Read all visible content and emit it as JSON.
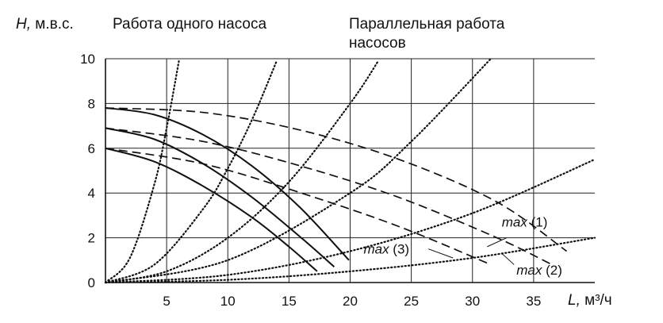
{
  "chart_data": {
    "type": "line",
    "title_single": "Работа одного насоса",
    "title_parallel_line1": "Параллельная работа",
    "title_parallel_line2": "насосов",
    "ylabel_var": "H,",
    "ylabel_unit": "м.в.с.",
    "xlabel_var": "L,",
    "xlabel_unit": "м³/ч",
    "xlim": [
      0,
      40
    ],
    "ylim": [
      0,
      10
    ],
    "x_ticks": [
      "5",
      "10",
      "15",
      "20",
      "25",
      "30",
      "35"
    ],
    "x_tick_values": [
      5,
      10,
      15,
      20,
      25,
      30,
      35
    ],
    "y_ticks": [
      "0",
      "2",
      "4",
      "6",
      "8",
      "10"
    ],
    "y_tick_values": [
      0,
      2,
      4,
      6,
      8,
      10
    ],
    "grid": true,
    "single_pump_curves": [
      {
        "x": [
          0,
          4,
          8,
          12,
          15,
          17.3
        ],
        "y": [
          6.0,
          5.4,
          4.3,
          2.9,
          1.6,
          0.5
        ]
      },
      {
        "x": [
          0,
          4,
          8,
          12,
          16,
          18.7
        ],
        "y": [
          6.9,
          6.4,
          5.3,
          3.8,
          2.0,
          0.7
        ]
      },
      {
        "x": [
          0,
          4,
          8,
          12,
          16,
          19.9
        ],
        "y": [
          7.8,
          7.5,
          6.6,
          5.2,
          3.3,
          1.0
        ]
      }
    ],
    "parallel_pump_curves": [
      {
        "x": [
          0,
          8,
          16,
          24,
          31.5
        ],
        "y": [
          6.0,
          5.3,
          4.0,
          2.5,
          0.8
        ]
      },
      {
        "x": [
          0,
          8,
          16,
          24,
          32,
          36.5
        ],
        "y": [
          6.9,
          6.3,
          5.2,
          3.8,
          2.0,
          0.8
        ]
      },
      {
        "x": [
          0,
          8,
          16,
          24,
          32,
          37.7
        ],
        "y": [
          7.8,
          7.6,
          6.8,
          5.5,
          3.6,
          1.4
        ]
      }
    ],
    "system_curves": [
      {
        "x": [
          0,
          2,
          4,
          5,
          6
        ],
        "y": [
          0,
          1.1,
          4.4,
          6.9,
          9.9
        ]
      },
      {
        "x": [
          0,
          4,
          8,
          10,
          12,
          14
        ],
        "y": [
          0,
          0.8,
          3.3,
          5.1,
          7.3,
          9.9
        ]
      },
      {
        "x": [
          0,
          5,
          10,
          15,
          20,
          22.3
        ],
        "y": [
          0,
          0.5,
          2.0,
          4.5,
          8.0,
          9.9
        ]
      },
      {
        "x": [
          0,
          10,
          20,
          25,
          31.5
        ],
        "y": [
          0,
          1.0,
          4.0,
          6.3,
          10.0
        ]
      },
      {
        "x": [
          0,
          10,
          20,
          30,
          40
        ],
        "y": [
          0,
          0.34,
          1.4,
          3.1,
          5.5
        ]
      },
      {
        "x": [
          0,
          10,
          20,
          30,
          40
        ],
        "y": [
          0,
          0.12,
          0.5,
          1.1,
          2.0
        ]
      }
    ],
    "annotations": [
      {
        "text": "max",
        "suffix": "(1)",
        "x": 32.4,
        "y": 2.5
      },
      {
        "text": "max",
        "suffix": "(3)",
        "x": 21.1,
        "y": 1.3
      },
      {
        "text": "max",
        "suffix": "(2)",
        "x": 33.6,
        "y": 0.35
      }
    ]
  }
}
